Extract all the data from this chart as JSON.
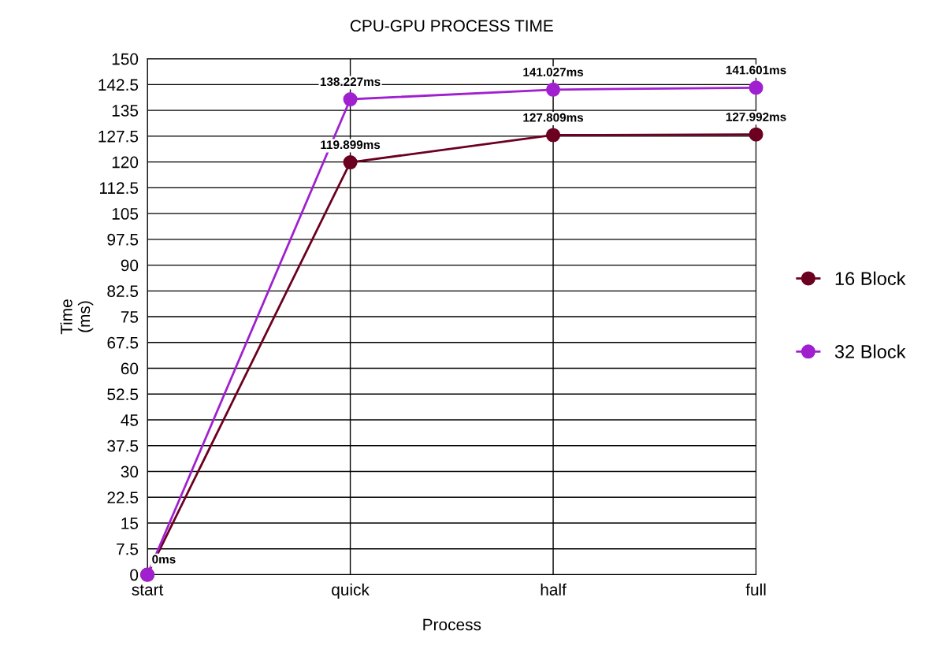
{
  "chart_data": {
    "type": "line",
    "title": "CPU-GPU PROCESS TIME",
    "xlabel": "Process",
    "ylabel": "Time\n(ms)",
    "categories": [
      "start",
      "quick",
      "half",
      "full"
    ],
    "series": [
      {
        "name": "16 Block",
        "color": "#6b0020",
        "values": [
          0,
          119.899,
          127.809,
          127.992
        ],
        "value_labels": [
          "0ms",
          "119.899ms",
          "127.809ms",
          "127.992ms"
        ]
      },
      {
        "name": "32 Block",
        "color": "#a020d0",
        "values": [
          0,
          138.227,
          141.027,
          141.601
        ],
        "value_labels": [
          null,
          "138.227ms",
          "141.027ms",
          "141.601ms"
        ]
      }
    ],
    "ylim": [
      0,
      150
    ],
    "yticks": [
      0,
      7.5,
      15,
      22.5,
      30,
      37.5,
      45,
      52.5,
      60,
      67.5,
      75,
      82.5,
      90,
      97.5,
      105,
      112.5,
      120,
      127.5,
      135,
      142.5,
      150
    ],
    "grid": true,
    "legend": "right",
    "marker": "circle",
    "line_style": "solid"
  }
}
